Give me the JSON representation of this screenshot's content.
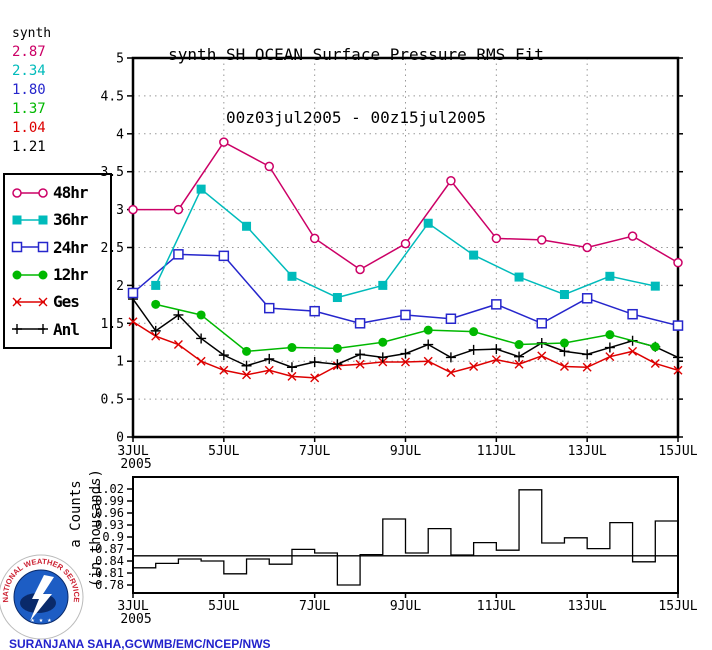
{
  "title": {
    "line1": "synth SH OCEAN Surface Pressure RMS Fit",
    "line2": "00z03jul2005 - 00z15jul2005"
  },
  "stats_legend": {
    "header": "synth",
    "items": [
      {
        "value": "2.87",
        "color": "#CC0066"
      },
      {
        "value": "2.34",
        "color": "#00BBBB"
      },
      {
        "value": "1.80",
        "color": "#2626CC"
      },
      {
        "value": "1.37",
        "color": "#00B800"
      },
      {
        "value": "1.04",
        "color": "#DD0000"
      },
      {
        "value": "1.21",
        "color": "#000000"
      }
    ]
  },
  "legend": {
    "items": [
      {
        "label": "48hr",
        "color": "#CC0066",
        "marker": "circle-open"
      },
      {
        "label": "36hr",
        "color": "#00BBBB",
        "marker": "square-filled"
      },
      {
        "label": "24hr",
        "color": "#2626CC",
        "marker": "square-open"
      },
      {
        "label": "12hr",
        "color": "#00B800",
        "marker": "circle-filled"
      },
      {
        "label": "Ges",
        "color": "#DD0000",
        "marker": "x"
      },
      {
        "label": "Anl",
        "color": "#000000",
        "marker": "plus"
      }
    ]
  },
  "credit": "SURANJANA SAHA,GCWMB/EMC/NCEP/NWS",
  "logo": {
    "ring_text": "NATIONAL WEATHER SERVICE",
    "stars": "★ ★ ★"
  },
  "chart_data": [
    {
      "type": "line",
      "title": "synth SH OCEAN Surface Pressure RMS Fit 00z03jul2005 - 00z15jul2005",
      "x_axis": {
        "start": "3JUL2005",
        "end": "15JUL2005",
        "points_per_day": 2,
        "tick_labels": [
          "3JUL",
          "5JUL",
          "7JUL",
          "9JUL",
          "11JUL",
          "13JUL",
          "15JUL"
        ],
        "year_label": "2005"
      },
      "ylim": [
        0,
        5
      ],
      "ytick_labels": [
        "5",
        "4.5",
        "4",
        "3.5",
        "3",
        "2.5",
        "2",
        "1.5",
        "1",
        "0.5",
        "0"
      ],
      "grid": "dotted",
      "series": [
        {
          "name": "48hr",
          "color": "#CC0066",
          "marker": "circle-open",
          "x": [
            0,
            2,
            4,
            6,
            8,
            10,
            12,
            14,
            16,
            18,
            20,
            22,
            24
          ],
          "values": [
            3.0,
            3.0,
            3.89,
            3.57,
            2.62,
            2.21,
            2.55,
            3.38,
            2.62,
            2.6,
            2.5,
            2.65,
            2.3
          ],
          "mean": 2.87
        },
        {
          "name": "36hr",
          "color": "#00BBBB",
          "marker": "square-filled",
          "x": [
            1,
            3,
            5,
            7,
            9,
            11,
            13,
            15,
            17,
            19,
            21,
            23
          ],
          "values": [
            2.0,
            3.27,
            2.78,
            2.12,
            1.84,
            2.0,
            2.82,
            2.4,
            2.11,
            1.88,
            2.12,
            1.99
          ],
          "mean": 2.34
        },
        {
          "name": "24hr",
          "color": "#2626CC",
          "marker": "square-open",
          "x": [
            0,
            2,
            4,
            6,
            8,
            10,
            12,
            14,
            16,
            18,
            20,
            22,
            24
          ],
          "values": [
            1.9,
            2.41,
            2.39,
            1.7,
            1.66,
            1.5,
            1.61,
            1.56,
            1.75,
            1.5,
            1.83,
            1.62,
            1.47
          ],
          "mean": 1.8
        },
        {
          "name": "12hr",
          "color": "#00B800",
          "marker": "circle-filled",
          "x": [
            1,
            3,
            5,
            7,
            9,
            11,
            13,
            15,
            17,
            19,
            21,
            23
          ],
          "values": [
            1.75,
            1.61,
            1.13,
            1.18,
            1.17,
            1.25,
            1.41,
            1.39,
            1.22,
            1.24,
            1.35,
            1.19
          ],
          "mean": 1.37
        },
        {
          "name": "Ges",
          "color": "#DD0000",
          "marker": "x",
          "x": [
            0,
            1,
            2,
            3,
            4,
            5,
            6,
            7,
            8,
            9,
            10,
            11,
            12,
            13,
            14,
            15,
            16,
            17,
            18,
            19,
            20,
            21,
            22,
            23,
            24
          ],
          "values": [
            1.52,
            1.33,
            1.22,
            1.0,
            0.88,
            0.82,
            0.88,
            0.8,
            0.78,
            0.94,
            0.96,
            0.99,
            0.99,
            1.0,
            0.85,
            0.93,
            1.02,
            0.96,
            1.07,
            0.93,
            0.92,
            1.06,
            1.13,
            0.97,
            0.88
          ],
          "mean": 1.04
        },
        {
          "name": "Anl",
          "color": "#000000",
          "marker": "plus",
          "x": [
            0,
            1,
            2,
            3,
            4,
            5,
            6,
            7,
            8,
            9,
            10,
            11,
            12,
            13,
            14,
            15,
            16,
            17,
            18,
            19,
            20,
            21,
            22,
            23,
            24
          ],
          "values": [
            1.82,
            1.4,
            1.61,
            1.3,
            1.08,
            0.94,
            1.03,
            0.92,
            0.99,
            0.96,
            1.09,
            1.05,
            1.1,
            1.22,
            1.05,
            1.15,
            1.16,
            1.06,
            1.24,
            1.13,
            1.09,
            1.18,
            1.27,
            1.19,
            1.05
          ],
          "mean": 1.21
        }
      ]
    },
    {
      "type": "step-bar",
      "ylabel_line1": "a Counts",
      "ylabel_line2": "(in thousands)",
      "ytick_labels": [
        "1.02",
        "0.99",
        "0.96",
        "0.93",
        "0.9",
        "0.87",
        "0.84",
        "0.81",
        "0.78"
      ],
      "yticks": [
        1.02,
        0.99,
        0.96,
        0.93,
        0.9,
        0.87,
        0.84,
        0.81,
        0.78
      ],
      "x_tick_labels": [
        "3JUL",
        "5JUL",
        "7JUL",
        "9JUL",
        "11JUL",
        "13JUL",
        "15JUL"
      ],
      "year_label": "2005",
      "baseline": 0.853,
      "values": [
        0.823,
        0.834,
        0.845,
        0.84,
        0.808,
        0.845,
        0.832,
        0.869,
        0.86,
        0.78,
        0.856,
        0.945,
        0.86,
        0.921,
        0.855,
        0.886,
        0.867,
        1.018,
        0.885,
        0.898,
        0.871,
        0.936,
        0.838,
        0.94
      ]
    }
  ]
}
